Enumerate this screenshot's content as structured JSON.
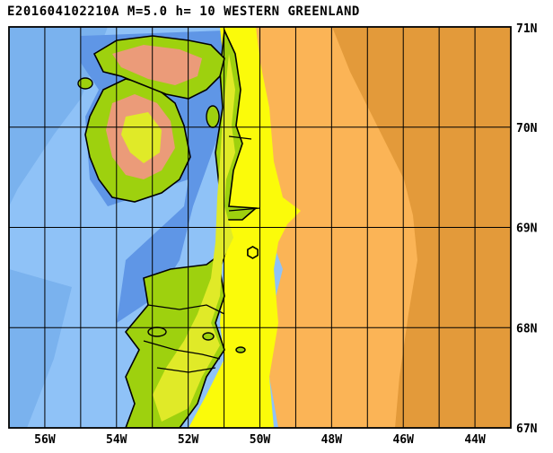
{
  "header": {
    "title": "E201604102210A M=5.0 h= 10 WESTERN GREENLAND"
  },
  "map": {
    "lon_range": [
      -57,
      -43
    ],
    "lat_range": [
      67,
      71
    ],
    "lat_ticks": [
      "67N",
      "68N",
      "69N",
      "70N",
      "71N"
    ],
    "lon_ticks": [
      "56W",
      "54W",
      "52W",
      "50W",
      "48W",
      "46W",
      "44W"
    ],
    "epicenter": {
      "lon": -50.2,
      "lat": 68.75
    },
    "colors": {
      "ocean_deep": "#7ab2ee",
      "ocean_shelf": "#8fc2f7",
      "ocean_coast": "#5f96e6",
      "coastal_yellow": "#fbfb0a",
      "land_low": "#9ed10e",
      "land_mid": "#e0ea28",
      "land_high": "#eb9b79",
      "ice_light": "#fbb456",
      "ice_dark": "#e39a3a",
      "grid": "#000000"
    }
  }
}
